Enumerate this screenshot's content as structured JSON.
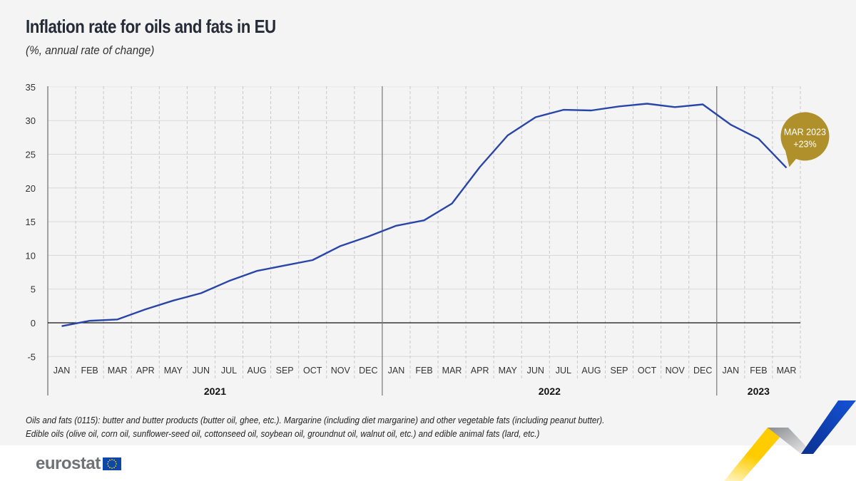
{
  "header": {
    "title": "Inflation rate for oils and fats in EU",
    "subtitle": "(%, annual rate of change)"
  },
  "chart_data": {
    "type": "line",
    "title": "Inflation rate for oils and fats in EU",
    "subtitle": "(%, annual rate of change)",
    "xlabel": "",
    "ylabel": "",
    "ylim": [
      -5,
      35
    ],
    "yticks": [
      35,
      30,
      25,
      20,
      15,
      10,
      5,
      0,
      -5
    ],
    "grid": true,
    "categories": [
      "JAN",
      "FEB",
      "MAR",
      "APR",
      "MAY",
      "JUN",
      "JUL",
      "AUG",
      "SEP",
      "OCT",
      "NOV",
      "DEC",
      "JAN",
      "FEB",
      "MAR",
      "APR",
      "MAY",
      "JUN",
      "JUL",
      "AUG",
      "SEP",
      "OCT",
      "NOV",
      "DEC",
      "JAN",
      "FEB",
      "MAR"
    ],
    "year_groups": [
      {
        "label": "2021",
        "count": 12
      },
      {
        "label": "2022",
        "count": 12
      },
      {
        "label": "2023",
        "count": 3
      }
    ],
    "series": [
      {
        "name": "Oils and fats",
        "color": "#2a45a8",
        "values": [
          -0.5,
          0.3,
          0.5,
          2.0,
          3.3,
          4.4,
          6.2,
          7.7,
          8.5,
          9.3,
          11.4,
          12.8,
          14.4,
          15.2,
          17.7,
          23.1,
          27.8,
          30.5,
          31.6,
          31.5,
          32.1,
          32.5,
          32.0,
          32.4,
          29.4,
          27.3,
          23.0
        ]
      }
    ],
    "annotation": {
      "line1": "MAR 2023",
      "line2": "+23%",
      "color": "#b0902a"
    }
  },
  "notes": {
    "line1": "Oils and fats (0115): butter and butter products (butter oil, ghee, etc.). Margarine (including diet margarine) and other vegetable fats (including peanut butter).",
    "line2": "Edible oils (olive oil, corn oil, sunflower-seed oil, cottonseed oil, soybean oil, groundnut oil, walnut oil, etc.) and edible animal fats (lard, etc.)"
  },
  "footer": {
    "logo_text": "eurostat"
  }
}
